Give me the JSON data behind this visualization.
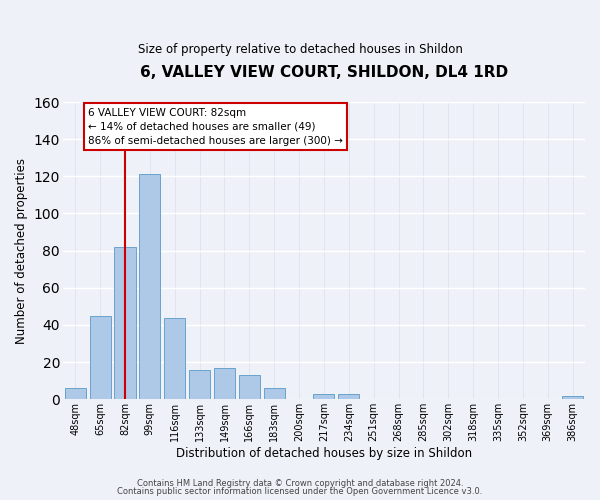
{
  "title": "6, VALLEY VIEW COURT, SHILDON, DL4 1RD",
  "subtitle": "Size of property relative to detached houses in Shildon",
  "xlabel": "Distribution of detached houses by size in Shildon",
  "ylabel": "Number of detached properties",
  "bin_labels": [
    "48sqm",
    "65sqm",
    "82sqm",
    "99sqm",
    "116sqm",
    "133sqm",
    "149sqm",
    "166sqm",
    "183sqm",
    "200sqm",
    "217sqm",
    "234sqm",
    "251sqm",
    "268sqm",
    "285sqm",
    "302sqm",
    "318sqm",
    "335sqm",
    "352sqm",
    "369sqm",
    "386sqm"
  ],
  "bar_values": [
    6,
    45,
    82,
    121,
    44,
    16,
    17,
    13,
    6,
    0,
    3,
    3,
    0,
    0,
    0,
    0,
    0,
    0,
    0,
    0,
    2
  ],
  "bar_color": "#aec9e8",
  "bar_edge_color": "#6aa3cc",
  "property_label": "6 VALLEY VIEW COURT: 82sqm",
  "pct_smaller": 14,
  "n_smaller": 49,
  "pct_larger": 86,
  "n_larger": 300,
  "vline_color": "#cc0000",
  "vline_x_index": 2,
  "ylim": [
    0,
    160
  ],
  "yticks": [
    0,
    20,
    40,
    60,
    80,
    100,
    120,
    140,
    160
  ],
  "footnote1": "Contains HM Land Registry data © Crown copyright and database right 2024.",
  "footnote2": "Contains public sector information licensed under the Open Government Licence v3.0.",
  "bg_color": "#eef2f8",
  "grid_color": "#d8e0ee"
}
